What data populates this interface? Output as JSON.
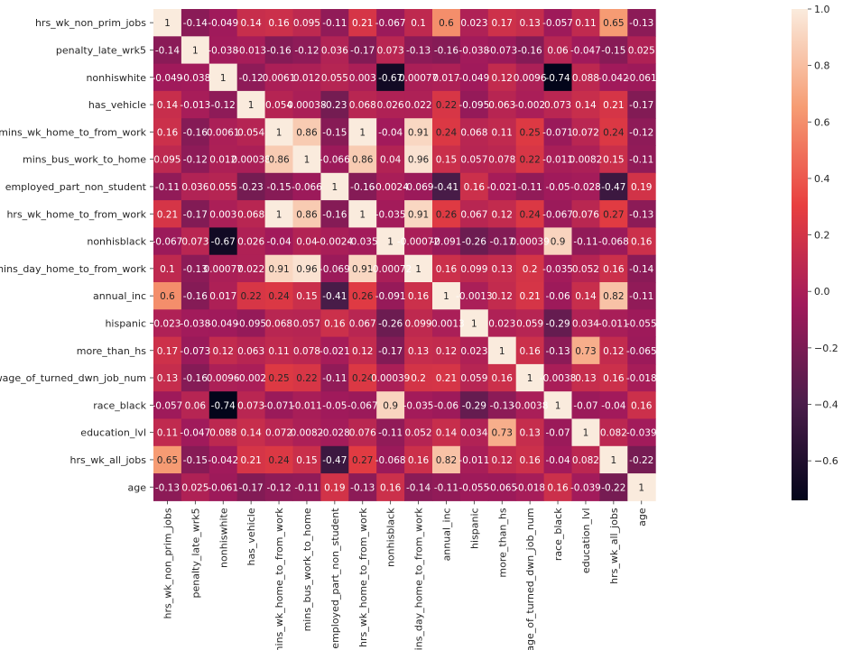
{
  "chart_data": {
    "type": "heatmap",
    "labels": [
      "hrs_wk_non_prim_jobs",
      "penalty_late_wrk5",
      "nonhiswhite",
      "has_vehicle",
      "mins_wk_home_to_from_work",
      "mins_bus_work_to_home",
      "employed_part_non_student",
      "hrs_wk_home_to_from_work",
      "nonhisblack",
      "mins_day_home_to_from_work",
      "annual_inc",
      "hispanic",
      "more_than_hs",
      "wage_of_turned_dwn_job_num",
      "race_black",
      "education_lvl",
      "hrs_wk_all_jobs",
      "age"
    ],
    "annotations": [
      [
        "1",
        "-0.14",
        "-0.049",
        "0.14",
        "0.16",
        "0.095",
        "-0.11",
        "0.21",
        "-0.067",
        "0.1",
        "0.6",
        "0.023",
        "0.17",
        "0.13",
        "-0.057",
        "0.11",
        "0.65",
        "-0.13"
      ],
      [
        "-0.14",
        "1",
        "-0.038",
        "-0.013",
        "-0.16",
        "-0.12",
        "0.036",
        "-0.17",
        "0.073",
        "-0.13",
        "-0.16",
        "-0.038",
        "-0.073",
        "-0.16",
        "0.06",
        "-0.047",
        "-0.15",
        "0.025"
      ],
      [
        "-0.049",
        "-0.038",
        "1",
        "-0.12",
        "0.0061",
        "0.012",
        "0.055",
        "0.003",
        "-0.67",
        "0.00077",
        "0.017",
        "-0.049",
        "0.12",
        "0.0096",
        "-0.74",
        "0.088",
        "-0.042",
        "-0.061"
      ],
      [
        "0.14",
        "-0.013",
        "-0.12",
        "1",
        "0.054",
        "0.00038",
        "-0.23",
        "0.068",
        "0.026",
        "0.022",
        "0.22",
        "-0.095",
        "0.063",
        "-0.002",
        "0.073",
        "0.14",
        "0.21",
        "-0.17"
      ],
      [
        "0.16",
        "-0.16",
        "0.0061",
        "0.054",
        "1",
        "0.86",
        "-0.15",
        "1",
        "-0.04",
        "0.91",
        "0.24",
        "0.068",
        "0.11",
        "0.25",
        "-0.071",
        "0.072",
        "0.24",
        "-0.12"
      ],
      [
        "0.095",
        "-0.12",
        "0.012",
        "0.00038",
        "0.86",
        "1",
        "-0.066",
        "0.86",
        "0.04",
        "0.96",
        "0.15",
        "0.057",
        "0.078",
        "0.22",
        "-0.011",
        "0.0082",
        "0.15",
        "-0.11"
      ],
      [
        "-0.11",
        "0.036",
        "0.055",
        "-0.23",
        "-0.15",
        "-0.066",
        "1",
        "-0.16",
        "-0.0024",
        "-0.069",
        "-0.41",
        "0.16",
        "-0.021",
        "-0.11",
        "-0.05",
        "-0.028",
        "-0.47",
        "0.19"
      ],
      [
        "0.21",
        "-0.17",
        "0.003",
        "0.068",
        "1",
        "0.86",
        "-0.16",
        "1",
        "-0.035",
        "0.91",
        "0.26",
        "0.067",
        "0.12",
        "0.24",
        "-0.067",
        "0.076",
        "0.27",
        "-0.13"
      ],
      [
        "-0.067",
        "0.073",
        "-0.67",
        "0.026",
        "-0.04",
        "0.04",
        "-0.0024",
        "-0.035",
        "1",
        "-0.00072",
        "-0.091",
        "-0.26",
        "-0.17",
        "0.00039",
        "0.9",
        "-0.11",
        "-0.068",
        "0.16"
      ],
      [
        "0.1",
        "-0.13",
        "0.00077",
        "0.022",
        "0.91",
        "0.96",
        "-0.069",
        "0.91",
        "-0.00072",
        "1",
        "0.16",
        "0.099",
        "0.13",
        "0.2",
        "-0.035",
        "0.052",
        "0.16",
        "-0.14"
      ],
      [
        "0.6",
        "-0.16",
        "0.017",
        "0.22",
        "0.24",
        "0.15",
        "-0.41",
        "0.26",
        "-0.091",
        "0.16",
        "1",
        "-0.0013",
        "0.12",
        "0.21",
        "-0.06",
        "0.14",
        "0.82",
        "-0.11"
      ],
      [
        "0.023",
        "-0.038",
        "-0.049",
        "-0.095",
        "0.068",
        "0.057",
        "0.16",
        "0.067",
        "-0.26",
        "0.099",
        "-0.0013",
        "1",
        "0.023",
        "0.059",
        "-0.29",
        "0.034",
        "-0.011",
        "-0.055"
      ],
      [
        "0.17",
        "-0.073",
        "0.12",
        "0.063",
        "0.11",
        "0.078",
        "-0.021",
        "0.12",
        "-0.17",
        "0.13",
        "0.12",
        "0.023",
        "1",
        "0.16",
        "-0.13",
        "0.73",
        "0.12",
        "-0.065"
      ],
      [
        "0.13",
        "-0.16",
        "0.0096",
        "-0.002",
        "0.25",
        "0.22",
        "-0.11",
        "0.24",
        "0.00039",
        "0.2",
        "0.21",
        "0.059",
        "0.16",
        "1",
        "-0.0038",
        "0.13",
        "0.16",
        "-0.018"
      ],
      [
        "-0.057",
        "0.06",
        "-0.74",
        "0.073",
        "-0.071",
        "-0.011",
        "-0.05",
        "-0.067",
        "0.9",
        "-0.035",
        "-0.06",
        "-0.29",
        "-0.13",
        "-0.0038",
        "1",
        "-0.07",
        "-0.04",
        "0.16"
      ],
      [
        "0.11",
        "-0.047",
        "0.088",
        "0.14",
        "0.072",
        "0.0082",
        "-0.028",
        "0.076",
        "-0.11",
        "0.052",
        "0.14",
        "0.034",
        "0.73",
        "0.13",
        "-0.07",
        "1",
        "0.082",
        "-0.039"
      ],
      [
        "0.65",
        "-0.15",
        "-0.042",
        "0.21",
        "0.24",
        "0.15",
        "-0.47",
        "0.27",
        "-0.068",
        "0.16",
        "0.82",
        "-0.011",
        "0.12",
        "0.16",
        "-0.04",
        "0.082",
        "1",
        "-0.22"
      ],
      [
        "-0.13",
        "0.025",
        "-0.061",
        "-0.17",
        "-0.12",
        "-0.11",
        "0.19",
        "-0.13",
        "0.16",
        "-0.14",
        "-0.11",
        "-0.055",
        "-0.065",
        "-0.018",
        "0.16",
        "-0.039",
        "-0.22",
        "1"
      ]
    ],
    "vmin": -0.74,
    "vmax": 1.0,
    "colorbar": {
      "ticks": [
        1.0,
        0.8,
        0.6,
        0.4,
        0.2,
        0.0,
        -0.2,
        -0.4,
        -0.6
      ],
      "tick_labels": [
        "1.0",
        "0.8",
        "0.6",
        "0.4",
        "0.2",
        "0.0",
        "−0.2",
        "−0.4",
        "−0.6"
      ]
    },
    "colormap_stops": [
      "#03051a",
      "#4c1d4b",
      "#a11a5b",
      "#e83f3f",
      "#f69c73",
      "#faebdd"
    ],
    "annotation_text_colors": {
      "dark_background": "#ffffff",
      "light_background": "#262626"
    },
    "title": "",
    "xlabel": "",
    "ylabel": ""
  }
}
